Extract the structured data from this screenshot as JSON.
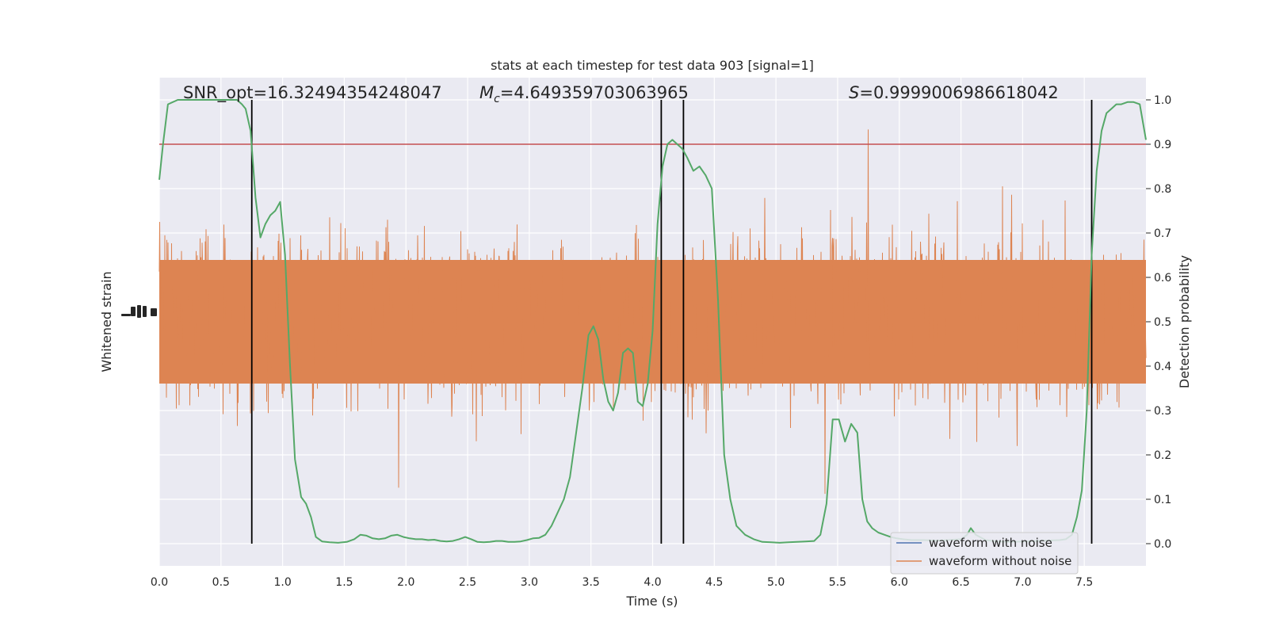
{
  "chart_data": {
    "type": "line",
    "title": "stats at each timestep for test data 903 [signal=1]",
    "xlabel": "Time (s)",
    "ylabel_left": "Whitened strain",
    "ylabel_right": "Detection probability",
    "xlim": [
      0.0,
      8.0
    ],
    "ylim_right": [
      -0.05,
      1.05
    ],
    "xticks": [
      "0.0",
      "0.5",
      "1.0",
      "1.5",
      "2.0",
      "2.5",
      "3.0",
      "3.5",
      "4.0",
      "4.5",
      "5.0",
      "5.5",
      "6.0",
      "6.5",
      "7.0",
      "7.5"
    ],
    "yticks_right": [
      "0.0",
      "0.1",
      "0.2",
      "0.3",
      "0.4",
      "0.5",
      "0.6",
      "0.7",
      "0.8",
      "0.9",
      "1.0"
    ],
    "annotations": {
      "snr_prefix": "SNR_opt=",
      "snr_value": "16.32494354248047",
      "mc_symbol": "M",
      "mc_sub": "c",
      "mc_value": "=4.649359703063965",
      "s_symbol": "S",
      "s_value": "=0.9999006986618042"
    },
    "threshold": 0.9,
    "vlines_x": [
      0.75,
      4.07,
      4.25,
      7.56
    ],
    "legend": {
      "placement": "lower-right",
      "entries": [
        "waveform with noise",
        "waveform without noise"
      ]
    },
    "colors": {
      "noise_waveform": "#dd8452",
      "noise_legend_blue": "#4c72b0",
      "probability": "#55a868",
      "threshold": "#c44e52",
      "vlines": "#000000",
      "axes_bg": "#eaeaf2",
      "grid": "#ffffff"
    },
    "series": [
      {
        "name": "Detection probability",
        "x": [
          0.0,
          0.03,
          0.07,
          0.15,
          0.25,
          0.35,
          0.45,
          0.55,
          0.63,
          0.67,
          0.7,
          0.74,
          0.78,
          0.82,
          0.86,
          0.9,
          0.94,
          0.98,
          1.02,
          1.06,
          1.1,
          1.15,
          1.19,
          1.23,
          1.27,
          1.32,
          1.38,
          1.45,
          1.52,
          1.58,
          1.63,
          1.68,
          1.73,
          1.78,
          1.83,
          1.88,
          1.93,
          1.98,
          2.03,
          2.08,
          2.13,
          2.18,
          2.23,
          2.28,
          2.33,
          2.38,
          2.43,
          2.48,
          2.53,
          2.58,
          2.63,
          2.68,
          2.73,
          2.78,
          2.83,
          2.88,
          2.93,
          2.98,
          3.03,
          3.08,
          3.13,
          3.18,
          3.23,
          3.28,
          3.33,
          3.38,
          3.43,
          3.48,
          3.52,
          3.56,
          3.6,
          3.64,
          3.68,
          3.72,
          3.76,
          3.8,
          3.84,
          3.88,
          3.92,
          3.96,
          4.0,
          4.04,
          4.08,
          4.12,
          4.16,
          4.2,
          4.24,
          4.28,
          4.33,
          4.38,
          4.43,
          4.48,
          4.53,
          4.58,
          4.63,
          4.68,
          4.75,
          4.82,
          4.89,
          4.96,
          5.03,
          5.1,
          5.17,
          5.24,
          5.31,
          5.36,
          5.41,
          5.46,
          5.51,
          5.56,
          5.61,
          5.66,
          5.7,
          5.74,
          5.78,
          5.83,
          5.88,
          5.93,
          5.98,
          6.03,
          6.1,
          6.2,
          6.3,
          6.4,
          6.5,
          6.55,
          6.58,
          6.62,
          6.7,
          6.8,
          6.9,
          7.0,
          7.1,
          7.2,
          7.3,
          7.35,
          7.4,
          7.44,
          7.48,
          7.52,
          7.56,
          7.6,
          7.64,
          7.68,
          7.72,
          7.76,
          7.8,
          7.85,
          7.9,
          7.95,
          8.0
        ],
        "y": [
          0.82,
          0.9,
          0.99,
          1.0,
          1.0,
          1.0,
          1.0,
          1.0,
          1.0,
          0.99,
          0.98,
          0.93,
          0.78,
          0.69,
          0.72,
          0.74,
          0.75,
          0.77,
          0.65,
          0.4,
          0.19,
          0.105,
          0.09,
          0.06,
          0.015,
          0.005,
          0.003,
          0.002,
          0.004,
          0.01,
          0.02,
          0.018,
          0.012,
          0.01,
          0.012,
          0.018,
          0.02,
          0.015,
          0.012,
          0.01,
          0.01,
          0.008,
          0.009,
          0.006,
          0.005,
          0.006,
          0.01,
          0.015,
          0.01,
          0.004,
          0.003,
          0.004,
          0.006,
          0.006,
          0.004,
          0.004,
          0.005,
          0.008,
          0.012,
          0.013,
          0.02,
          0.04,
          0.07,
          0.1,
          0.15,
          0.25,
          0.35,
          0.47,
          0.49,
          0.46,
          0.37,
          0.32,
          0.3,
          0.34,
          0.43,
          0.44,
          0.43,
          0.32,
          0.31,
          0.36,
          0.48,
          0.72,
          0.85,
          0.9,
          0.91,
          0.9,
          0.89,
          0.87,
          0.84,
          0.85,
          0.83,
          0.8,
          0.55,
          0.2,
          0.1,
          0.04,
          0.02,
          0.01,
          0.004,
          0.003,
          0.002,
          0.003,
          0.004,
          0.005,
          0.006,
          0.02,
          0.09,
          0.28,
          0.28,
          0.23,
          0.27,
          0.25,
          0.1,
          0.05,
          0.035,
          0.025,
          0.02,
          0.015,
          0.012,
          0.01,
          0.008,
          0.008,
          0.007,
          0.008,
          0.01,
          0.02,
          0.035,
          0.02,
          0.008,
          0.005,
          0.004,
          0.005,
          0.006,
          0.007,
          0.008,
          0.01,
          0.02,
          0.06,
          0.12,
          0.3,
          0.65,
          0.84,
          0.93,
          0.97,
          0.98,
          0.99,
          0.99,
          0.995,
          0.995,
          0.99,
          0.91
        ]
      }
    ]
  }
}
